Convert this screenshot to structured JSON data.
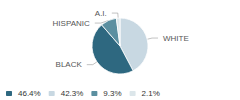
{
  "chart_data": {
    "type": "pie",
    "categories": [
      "WHITE",
      "BLACK",
      "HISPANIC",
      "A.I."
    ],
    "values": [
      42.3,
      46.4,
      9.3,
      2.1
    ],
    "value_labels": [
      "42.3%",
      "46.4%",
      "9.3%",
      "2.1%"
    ],
    "colors": [
      "#c8d8e2",
      "#2e6880",
      "#5b8fa0",
      "#dce6ea"
    ],
    "legend_entries": [
      "46.4%",
      "42.3%",
      "9.3%",
      "2.1%"
    ],
    "legend": "bottom left"
  }
}
